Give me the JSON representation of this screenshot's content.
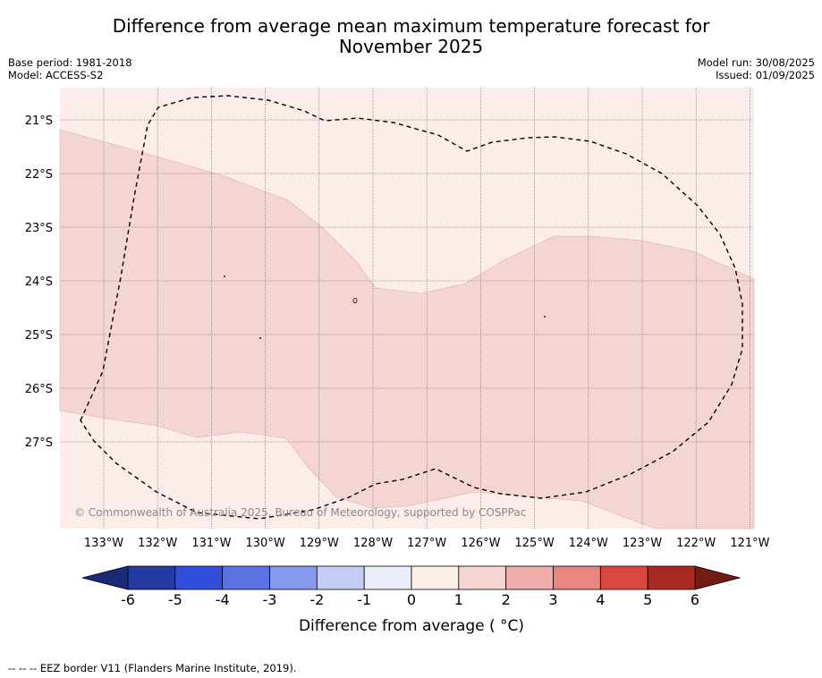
{
  "title_line1": "Difference from average mean maximum temperature forecast for",
  "title_line2": "November 2025",
  "meta": {
    "base_period": "Base period: 1981-2018",
    "model": "Model: ACCESS-S2",
    "model_run": "Model run: 30/08/2025",
    "issued": "Issued: 01/09/2025"
  },
  "map": {
    "lat_labels": [
      "21°S",
      "22°S",
      "23°S",
      "24°S",
      "25°S",
      "26°S",
      "27°S"
    ],
    "lon_labels": [
      "133°W",
      "132°W",
      "131°W",
      "130°W",
      "129°W",
      "128°W",
      "127°W",
      "126°W",
      "125°W",
      "124°W",
      "123°W",
      "122°W",
      "121°W"
    ],
    "copyright": "© Commonwealth of Australia 2025, Bureau of Meteorology, supported by COSPPac",
    "colors": {
      "band_0_1": "#fcecea",
      "band_1_2": "#f5d5d3",
      "eez_border": "#000000"
    },
    "field_values": {
      "background_band": "0 to 1",
      "central_band": "1 to 2"
    }
  },
  "colorbar": {
    "ticks": [
      "-6",
      "-5",
      "-4",
      "-3",
      "-2",
      "-1",
      "0",
      "1",
      "2",
      "3",
      "4",
      "5",
      "6"
    ],
    "colors": [
      "#233a9e",
      "#3050dc",
      "#5c74e3",
      "#8799ec",
      "#c4cbf5",
      "#e9ecfb",
      "#fcecea",
      "#f5d5d3",
      "#eeaea9",
      "#e8867f",
      "#d9483e",
      "#a9281f"
    ],
    "under_color": "#1a2a7a",
    "over_color": "#761a14",
    "label": "Difference from average ( °C)"
  },
  "footer": "--  --  -- EEZ border V11 (Flanders Marine Institute, 2019)."
}
